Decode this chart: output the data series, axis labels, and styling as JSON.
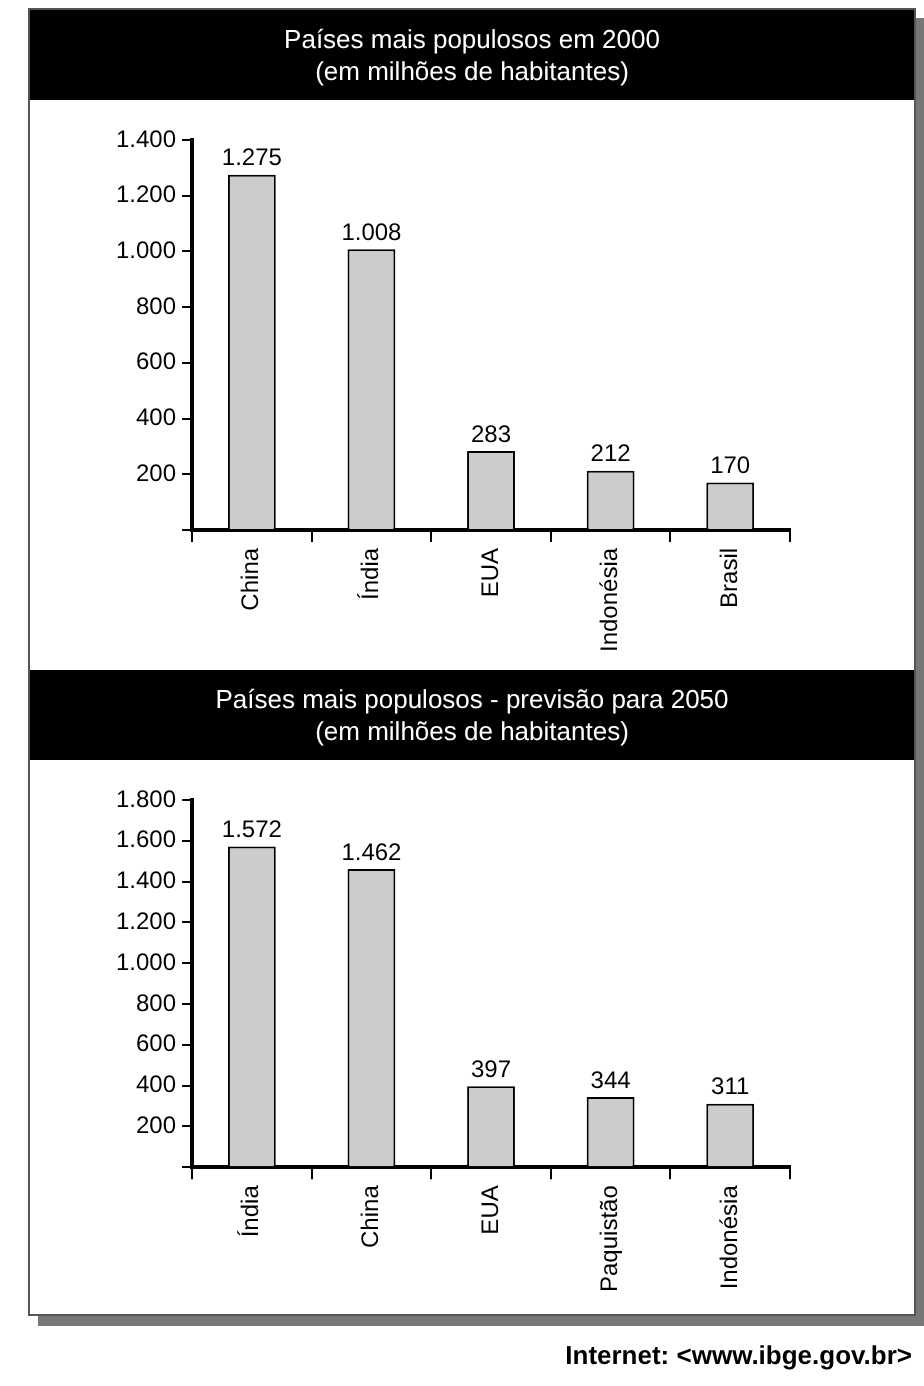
{
  "chart_data": [
    {
      "type": "bar",
      "title": "Países mais populosos em 2000",
      "subtitle": "(em milhões de habitantes)",
      "categories": [
        "China",
        "Índia",
        "EUA",
        "Indonésia",
        "Brasil"
      ],
      "values": [
        1275,
        1008,
        283,
        212,
        170
      ],
      "value_labels": [
        "1.275",
        "1.008",
        "283",
        "212",
        "170"
      ],
      "color": "#cccccc",
      "ylim": [
        0,
        1400
      ],
      "yticks": [
        {
          "value": 0,
          "label": null
        },
        200,
        400,
        600,
        800,
        {
          "value": 1000,
          "label": "1.000"
        },
        {
          "value": 1200,
          "label": "1.200"
        },
        {
          "value": 1400,
          "label": "1.400"
        }
      ],
      "grid": false,
      "legend": false
    },
    {
      "type": "bar",
      "title": "Países mais populosos - previsão para 2050",
      "subtitle": "(em milhões de habitantes)",
      "categories": [
        "Índia",
        "China",
        "EUA",
        "Paquistão",
        "Indonésia"
      ],
      "values": [
        1572,
        1462,
        397,
        344,
        311
      ],
      "value_labels": [
        "1.572",
        "1.462",
        "397",
        "344",
        "311"
      ],
      "color": "#cccccc",
      "ylim": [
        0,
        1800
      ],
      "yticks": [
        {
          "value": 0,
          "label": null
        },
        200,
        400,
        600,
        800,
        {
          "value": 1000,
          "label": "1.000"
        },
        {
          "value": 1200,
          "label": "1.200"
        },
        {
          "value": 1400,
          "label": "1.400"
        },
        {
          "value": 1600,
          "label": "1.600"
        },
        {
          "value": 1800,
          "label": "1.800"
        }
      ],
      "grid": false,
      "legend": false,
      "annotations": [
        "Internet: <www.ibge.gov.br>"
      ]
    }
  ]
}
